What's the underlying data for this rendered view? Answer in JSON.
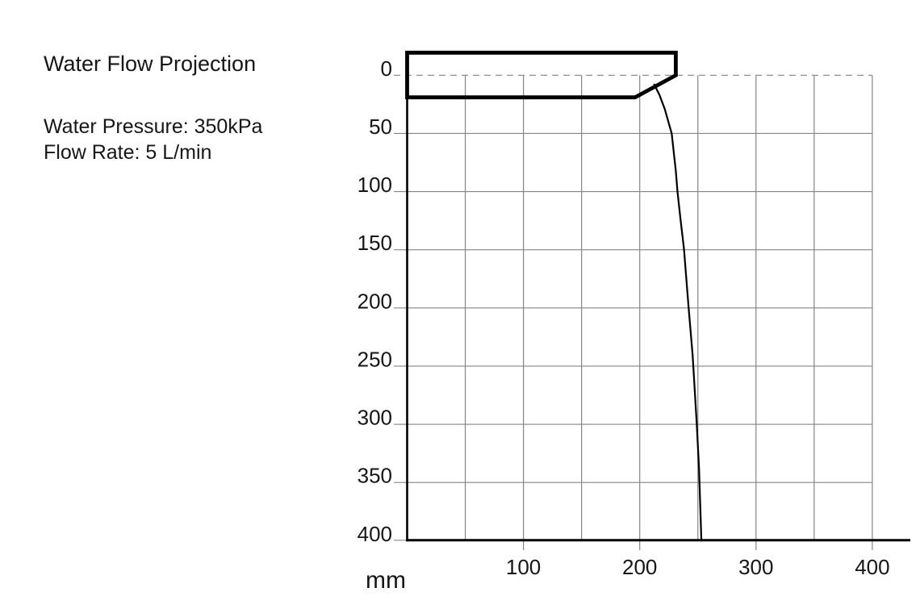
{
  "chart_data": {
    "type": "line",
    "title": "Water Flow Projection",
    "annotations": [
      "Water Pressure: 350kPa",
      "Flow Rate: 5 L/min"
    ],
    "x_axis": {
      "unit": "mm",
      "ticks": [
        100,
        200,
        300,
        400
      ],
      "range": [
        0,
        400
      ],
      "gridline_step_mm": 50
    },
    "y_axis": {
      "unit": "mm",
      "ticks": [
        0,
        50,
        100,
        150,
        200,
        250,
        300,
        350,
        400
      ],
      "range": [
        0,
        400
      ],
      "direction": "down",
      "gridline_step_mm": 50,
      "zero_line_style": "dashed"
    },
    "grid": true,
    "legend": "none",
    "colors": {
      "grid": "#848484",
      "axis": "#000000",
      "curve": "#000000",
      "text": "#161616",
      "background": "#ffffff"
    },
    "series": [
      {
        "name": "water-jet-trajectory",
        "color": "#000000",
        "points_mm": [
          [
            212.5,
            8
          ],
          [
            217,
            17
          ],
          [
            221.5,
            29
          ],
          [
            227.5,
            50
          ],
          [
            231,
            82
          ],
          [
            232.5,
            100
          ],
          [
            235,
            123
          ],
          [
            238,
            149
          ],
          [
            242,
            199
          ],
          [
            245.5,
            241
          ],
          [
            249,
            299
          ],
          [
            251,
            338
          ],
          [
            253,
            400
          ]
        ]
      }
    ],
    "spout_outline_mm": [
      [
        0,
        -19.4
      ],
      [
        231,
        -19.4
      ],
      [
        231,
        0
      ],
      [
        196,
        19
      ],
      [
        0,
        19
      ]
    ]
  }
}
